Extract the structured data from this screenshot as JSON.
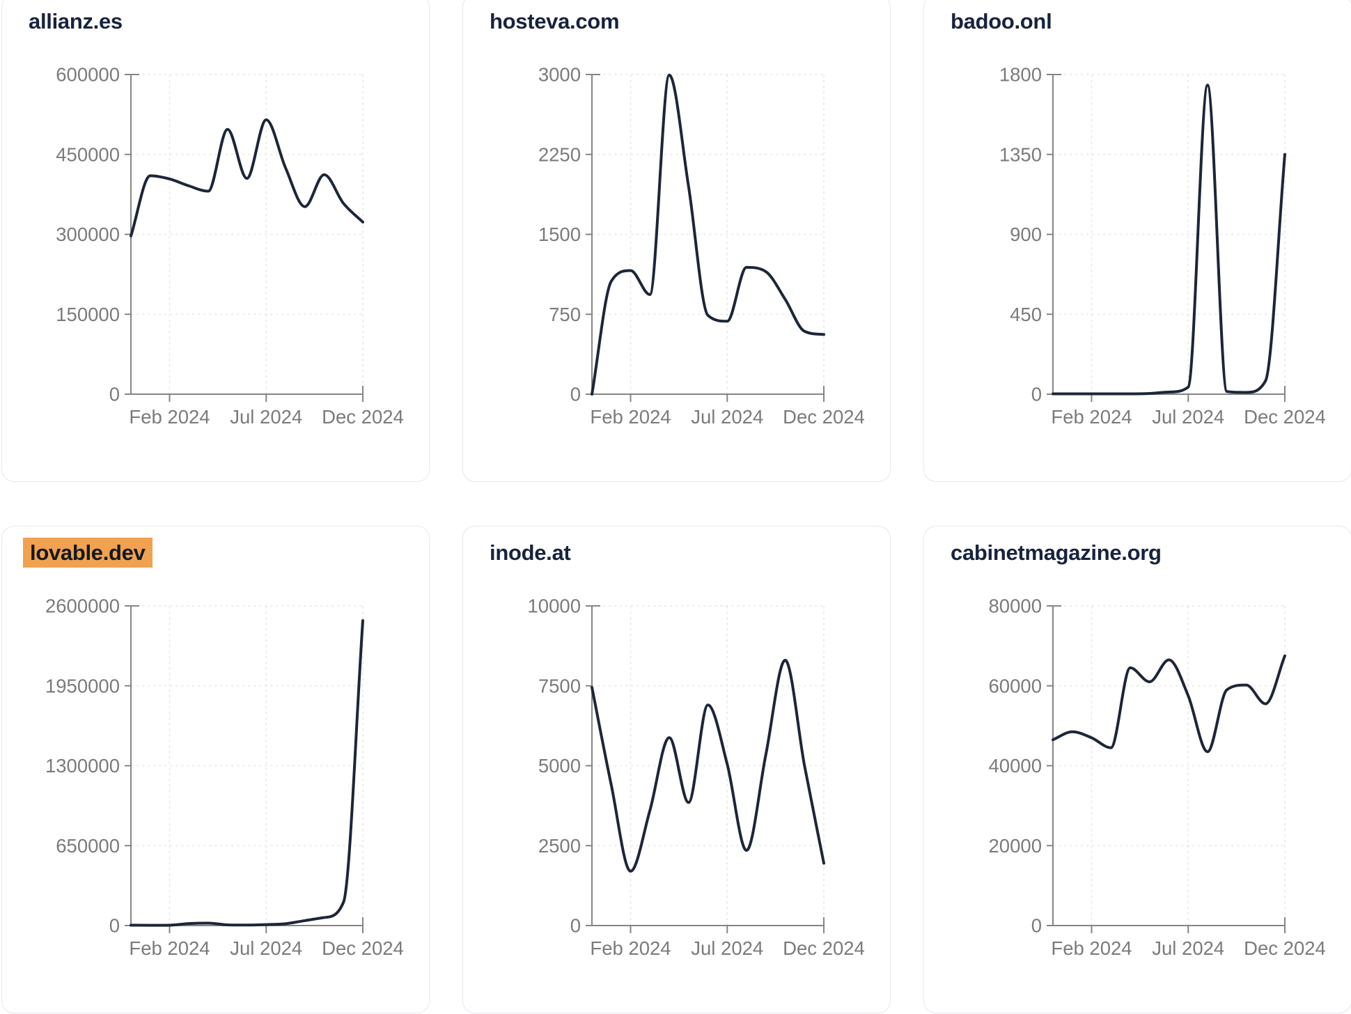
{
  "page": {
    "background": "#FFFFFF"
  },
  "style": {
    "card_background": "#FFFFFF",
    "card_border": "#E7E7F0",
    "title_color": "#17233E",
    "highlight_background": "#F0A250",
    "highlight_text_color": "#14181F",
    "line_color": "#1C2638",
    "axis_color": "#858585",
    "tick_label_color": "#7B7B7B",
    "grid_color": "#E8E8EA"
  },
  "chart_data": [
    {
      "type": "line",
      "title": "allianz.es",
      "title_highlighted": false,
      "x_tick_labels": [
        "Feb 2024",
        "Jul 2024",
        "Dec 2024"
      ],
      "x_tick_indices": [
        2,
        7,
        12
      ],
      "y_ticks": [
        0,
        150000,
        300000,
        450000,
        600000
      ],
      "ylim": [
        0,
        600000
      ],
      "grid": true,
      "legend": false,
      "values": [
        297000,
        410000,
        404000,
        391000,
        381000,
        497000,
        405000,
        515000,
        425000,
        352000,
        412000,
        358000,
        323000
      ]
    },
    {
      "type": "line",
      "title": "hosteva.com",
      "title_highlighted": false,
      "x_tick_labels": [
        "Feb 2024",
        "Jul 2024",
        "Dec 2024"
      ],
      "x_tick_indices": [
        2,
        7,
        12
      ],
      "y_ticks": [
        0,
        750,
        1500,
        2250,
        3000
      ],
      "ylim": [
        0,
        3000
      ],
      "grid": true,
      "legend": false,
      "values": [
        0,
        1060,
        1160,
        935,
        2995,
        1950,
        740,
        685,
        1190,
        1150,
        890,
        590,
        560
      ]
    },
    {
      "type": "line",
      "title": "badoo.onl",
      "title_highlighted": false,
      "x_tick_labels": [
        "Feb 2024",
        "Jul 2024",
        "Dec 2024"
      ],
      "x_tick_indices": [
        2,
        7,
        12
      ],
      "y_ticks": [
        0,
        450,
        900,
        1350,
        1800
      ],
      "ylim": [
        0,
        1800
      ],
      "grid": true,
      "legend": false,
      "values": [
        2,
        2,
        2,
        2,
        2,
        4,
        12,
        40,
        1740,
        15,
        10,
        75,
        1350
      ]
    },
    {
      "type": "line",
      "title": "lovable.dev",
      "title_highlighted": true,
      "x_tick_labels": [
        "Feb 2024",
        "Jul 2024",
        "Dec 2024"
      ],
      "x_tick_indices": [
        2,
        7,
        12
      ],
      "y_ticks": [
        0,
        650000,
        1300000,
        1950000,
        2600000
      ],
      "ylim": [
        0,
        2600000
      ],
      "grid": true,
      "legend": false,
      "values": [
        3000,
        2000,
        3000,
        16000,
        20000,
        6000,
        4000,
        8000,
        15000,
        40000,
        65000,
        190000,
        2480000
      ]
    },
    {
      "type": "line",
      "title": "inode.at",
      "title_highlighted": false,
      "x_tick_labels": [
        "Feb 2024",
        "Jul 2024",
        "Dec 2024"
      ],
      "x_tick_indices": [
        2,
        7,
        12
      ],
      "y_ticks": [
        0,
        2500,
        5000,
        7500,
        10000
      ],
      "ylim": [
        0,
        10000
      ],
      "grid": true,
      "legend": false,
      "values": [
        7450,
        4400,
        1700,
        3600,
        5880,
        3850,
        6900,
        5050,
        2350,
        5350,
        8300,
        5000,
        1950
      ]
    },
    {
      "type": "line",
      "title": "cabinetmagazine.org",
      "title_highlighted": false,
      "x_tick_labels": [
        "Feb 2024",
        "Jul 2024",
        "Dec 2024"
      ],
      "x_tick_indices": [
        2,
        7,
        12
      ],
      "y_ticks": [
        0,
        20000,
        40000,
        60000,
        80000
      ],
      "ylim": [
        0,
        80000
      ],
      "grid": true,
      "legend": false,
      "values": [
        46500,
        48500,
        47000,
        44500,
        64500,
        61000,
        66500,
        57500,
        43500,
        59000,
        60200,
        55500,
        67500
      ]
    }
  ]
}
